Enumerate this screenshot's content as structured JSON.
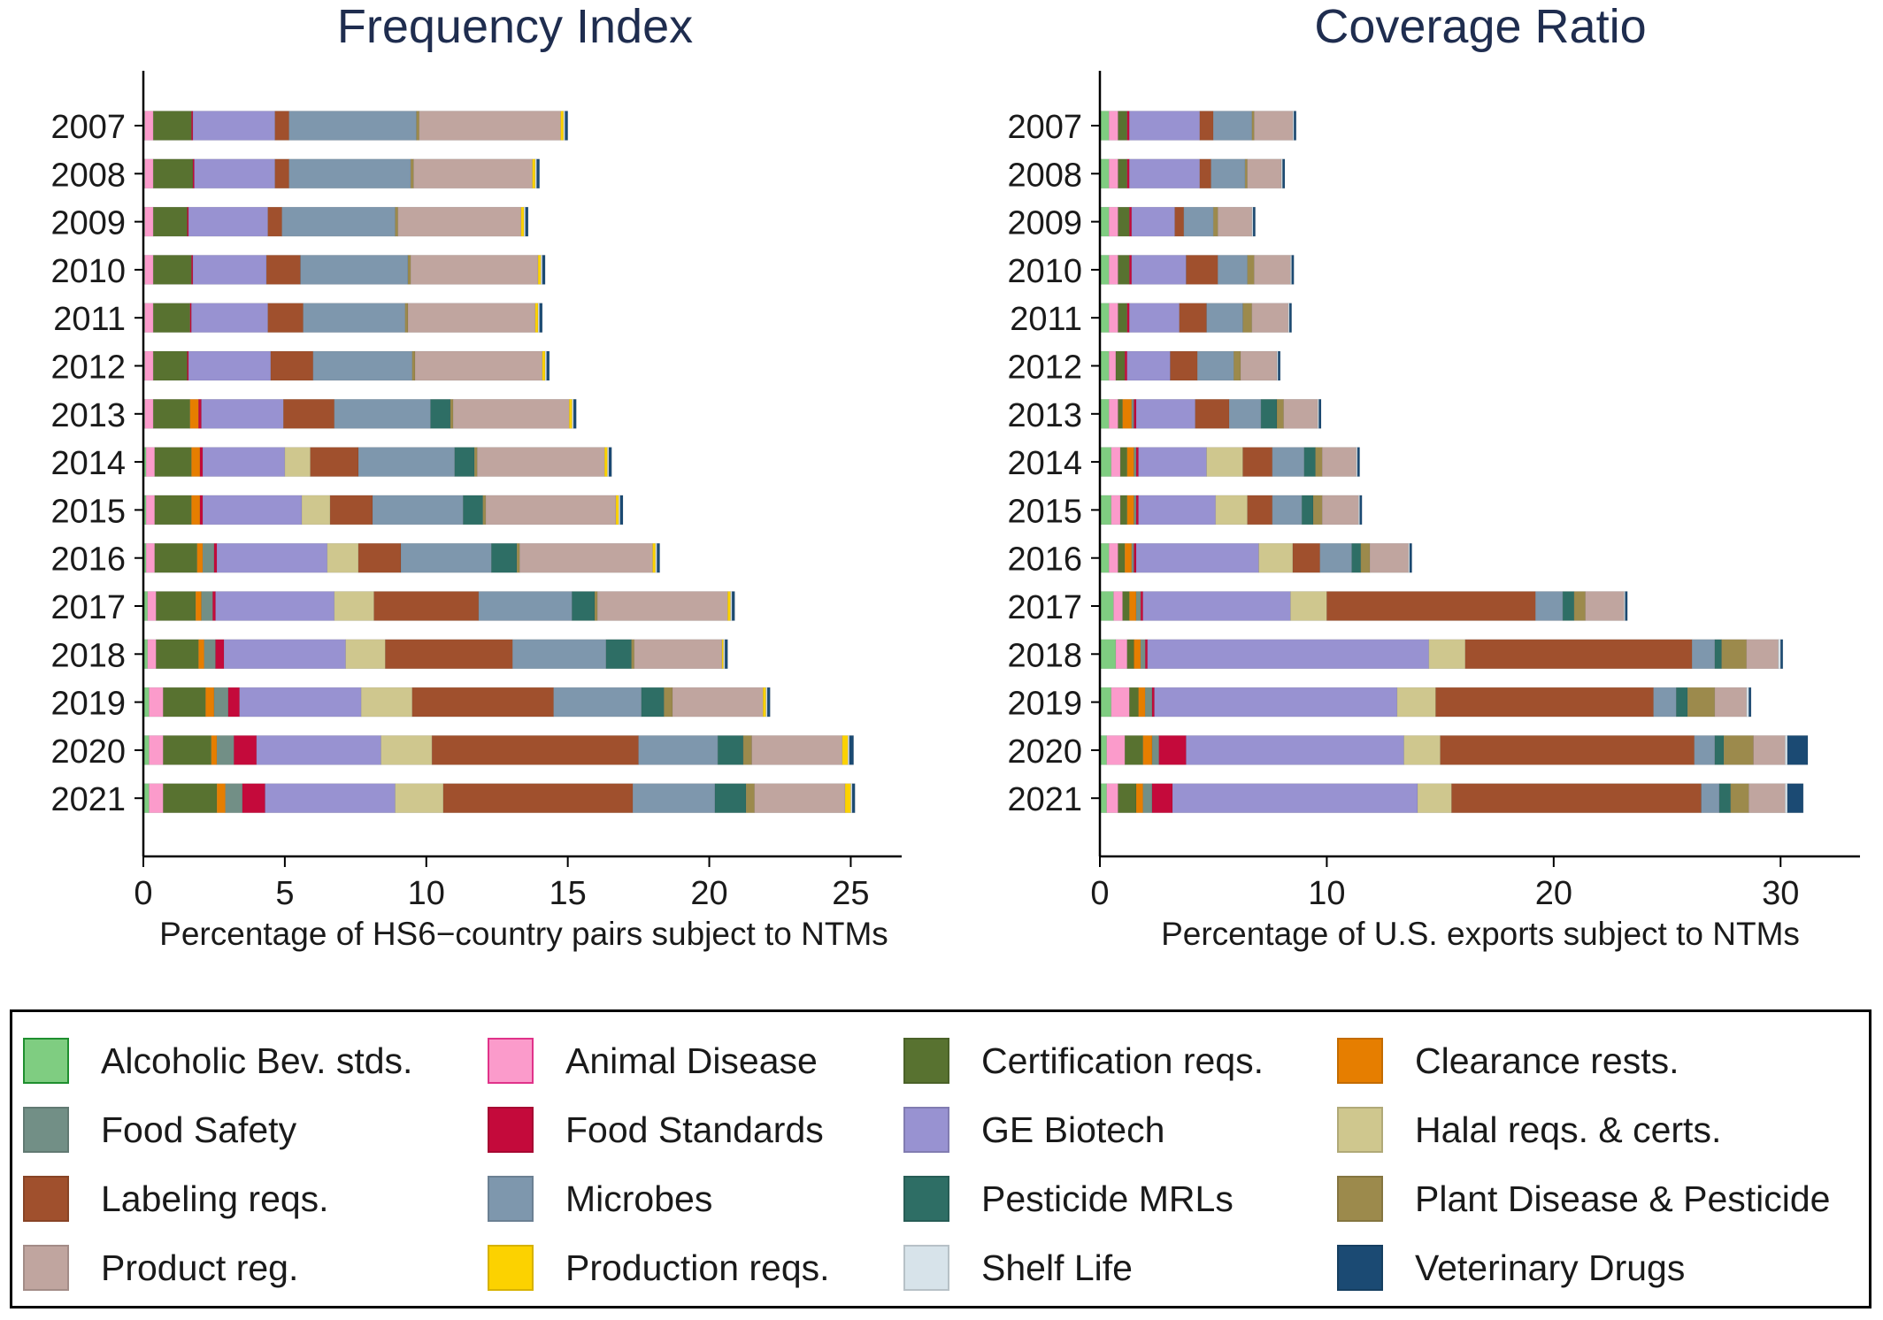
{
  "legend": [
    {
      "name": "Alcoholic Bev. stds.",
      "color": "#7fcd81",
      "border": "#1f8f2f"
    },
    {
      "name": "Animal Disease",
      "color": "#fb9bcb",
      "border": "#e0338a"
    },
    {
      "name": "Certification reqs.",
      "color": "#587230"
    },
    {
      "name": "Clearance rests.",
      "color": "#e67e00"
    },
    {
      "name": "Food Safety",
      "color": "#728f86"
    },
    {
      "name": "Food Standards",
      "color": "#c40a3b"
    },
    {
      "name": "GE Biotech",
      "color": "#9892d1"
    },
    {
      "name": "Halal reqs. & certs.",
      "color": "#cfc78e"
    },
    {
      "name": "Labeling reqs.",
      "color": "#a0502d"
    },
    {
      "name": "Microbes",
      "color": "#7e97ad"
    },
    {
      "name": "Pesticide MRLs",
      "color": "#2e6e65"
    },
    {
      "name": "Plant Disease & Pesticide",
      "color": "#9c8a4c"
    },
    {
      "name": "Product reg.",
      "color": "#c0a59f"
    },
    {
      "name": "Production reqs.",
      "color": "#fcd200"
    },
    {
      "name": "Shelf Life",
      "color": "#d7e3ea"
    },
    {
      "name": "Veterinary Drugs",
      "color": "#1b4a73"
    }
  ],
  "chart_data": [
    {
      "type": "bar",
      "orientation": "horizontal",
      "stacked": true,
      "title": "Frequency Index",
      "xlabel": "Percentage of HS6−country pairs subject to NTMs",
      "xlim": [
        0,
        26.8
      ],
      "xticks": [
        0,
        5,
        10,
        15,
        20,
        25
      ],
      "categories": [
        "2007",
        "2008",
        "2009",
        "2010",
        "2011",
        "2012",
        "2013",
        "2014",
        "2015",
        "2016",
        "2017",
        "2018",
        "2019",
        "2020",
        "2021"
      ],
      "series": [
        {
          "name": "Alcoholic Bev. stds.",
          "values": [
            0.05,
            0.05,
            0.05,
            0.05,
            0.05,
            0.05,
            0.05,
            0.1,
            0.1,
            0.1,
            0.15,
            0.15,
            0.2,
            0.2,
            0.2
          ]
        },
        {
          "name": "Animal Disease",
          "values": [
            0.3,
            0.3,
            0.3,
            0.3,
            0.3,
            0.3,
            0.3,
            0.3,
            0.3,
            0.3,
            0.3,
            0.3,
            0.5,
            0.5,
            0.5
          ]
        },
        {
          "name": "Certification reqs.",
          "values": [
            1.35,
            1.4,
            1.2,
            1.35,
            1.3,
            1.2,
            1.3,
            1.3,
            1.3,
            1.5,
            1.4,
            1.5,
            1.5,
            1.7,
            1.9
          ]
        },
        {
          "name": "Clearance rests.",
          "values": [
            0,
            0,
            0,
            0,
            0,
            0,
            0.3,
            0.3,
            0.3,
            0.2,
            0.2,
            0.2,
            0.3,
            0.2,
            0.3
          ]
        },
        {
          "name": "Food Safety",
          "values": [
            0,
            0,
            0,
            0,
            0,
            0,
            0,
            0,
            0,
            0.4,
            0.4,
            0.4,
            0.5,
            0.6,
            0.6
          ]
        },
        {
          "name": "Food Standards",
          "values": [
            0.05,
            0.05,
            0.05,
            0.05,
            0.05,
            0.05,
            0.1,
            0.1,
            0.1,
            0.1,
            0.1,
            0.3,
            0.4,
            0.8,
            0.8
          ]
        },
        {
          "name": "GE Biotech",
          "values": [
            2.9,
            2.85,
            2.8,
            2.6,
            2.7,
            2.9,
            2.9,
            2.9,
            3.5,
            3.9,
            4.2,
            4.3,
            4.3,
            4.4,
            4.6
          ]
        },
        {
          "name": "Halal reqs. & certs.",
          "values": [
            0,
            0,
            0,
            0,
            0,
            0,
            0,
            0.9,
            1.0,
            1.1,
            1.4,
            1.4,
            1.8,
            1.8,
            1.7
          ]
        },
        {
          "name": "Labeling reqs.",
          "values": [
            0.5,
            0.5,
            0.5,
            1.2,
            1.25,
            1.5,
            1.8,
            1.7,
            1.5,
            1.5,
            3.7,
            4.5,
            5.0,
            7.3,
            6.7
          ]
        },
        {
          "name": "Microbes",
          "values": [
            4.5,
            4.3,
            4.0,
            3.8,
            3.6,
            3.5,
            3.4,
            3.4,
            3.2,
            3.2,
            3.3,
            3.3,
            3.1,
            2.8,
            2.9
          ]
        },
        {
          "name": "Pesticide MRLs",
          "values": [
            0,
            0,
            0,
            0,
            0,
            0,
            0.7,
            0.7,
            0.7,
            0.9,
            0.8,
            0.9,
            0.8,
            0.9,
            1.1
          ]
        },
        {
          "name": "Plant Disease & Pesticide",
          "values": [
            0.1,
            0.1,
            0.1,
            0.1,
            0.1,
            0.1,
            0.1,
            0.1,
            0.1,
            0.1,
            0.1,
            0.1,
            0.3,
            0.3,
            0.3
          ]
        },
        {
          "name": "Product reg.",
          "values": [
            5.0,
            4.2,
            4.35,
            4.5,
            4.5,
            4.5,
            4.1,
            4.5,
            4.6,
            4.7,
            4.6,
            3.1,
            3.2,
            3.2,
            3.2
          ]
        },
        {
          "name": "Production reqs.",
          "values": [
            0.1,
            0.1,
            0.1,
            0.1,
            0.1,
            0.1,
            0.1,
            0.1,
            0.1,
            0.1,
            0.1,
            0.05,
            0.1,
            0.2,
            0.2
          ]
        },
        {
          "name": "Shelf Life",
          "values": [
            0.05,
            0.05,
            0.05,
            0.05,
            0.05,
            0.05,
            0.05,
            0.05,
            0.05,
            0.05,
            0.05,
            0.05,
            0.05,
            0.05,
            0.05
          ]
        },
        {
          "name": "Veterinary Drugs",
          "values": [
            0.1,
            0.1,
            0.1,
            0.1,
            0.1,
            0.1,
            0.1,
            0.1,
            0.1,
            0.1,
            0.1,
            0.1,
            0.1,
            0.15,
            0.1
          ]
        }
      ]
    },
    {
      "type": "bar",
      "orientation": "horizontal",
      "stacked": true,
      "title": "Coverage Ratio",
      "xlabel": "Percentage of U.S. exports subject to NTMs",
      "xlim": [
        0,
        33.5
      ],
      "xticks": [
        0,
        10,
        20,
        30
      ],
      "categories": [
        "2007",
        "2008",
        "2009",
        "2010",
        "2011",
        "2012",
        "2013",
        "2014",
        "2015",
        "2016",
        "2017",
        "2018",
        "2019",
        "2020",
        "2021"
      ],
      "series": [
        {
          "name": "Alcoholic Bev. stds.",
          "values": [
            0.4,
            0.4,
            0.4,
            0.4,
            0.4,
            0.4,
            0.4,
            0.5,
            0.5,
            0.4,
            0.6,
            0.7,
            0.5,
            0.3,
            0.3
          ]
        },
        {
          "name": "Animal Disease",
          "values": [
            0.4,
            0.4,
            0.4,
            0.4,
            0.4,
            0.3,
            0.4,
            0.4,
            0.4,
            0.4,
            0.4,
            0.5,
            0.8,
            0.8,
            0.5
          ]
        },
        {
          "name": "Certification reqs.",
          "values": [
            0.4,
            0.4,
            0.5,
            0.5,
            0.4,
            0.4,
            0.2,
            0.3,
            0.3,
            0.3,
            0.3,
            0.3,
            0.4,
            0.8,
            0.8
          ]
        },
        {
          "name": "Clearance rests.",
          "values": [
            0,
            0,
            0,
            0,
            0,
            0,
            0.4,
            0.3,
            0.3,
            0.3,
            0.3,
            0.3,
            0.3,
            0.4,
            0.3
          ]
        },
        {
          "name": "Food Safety",
          "values": [
            0,
            0,
            0,
            0,
            0,
            0,
            0.1,
            0.1,
            0.1,
            0.1,
            0.2,
            0.2,
            0.3,
            0.3,
            0.4
          ]
        },
        {
          "name": "Food Standards",
          "values": [
            0.1,
            0.1,
            0.1,
            0.1,
            0.1,
            0.1,
            0.1,
            0.1,
            0.1,
            0.1,
            0.1,
            0.1,
            0.1,
            1.2,
            0.9
          ]
        },
        {
          "name": "GE Biotech",
          "values": [
            3.1,
            3.1,
            1.9,
            2.4,
            2.2,
            1.9,
            2.6,
            3.0,
            3.4,
            5.4,
            6.5,
            12.4,
            10.7,
            9.6,
            10.8
          ]
        },
        {
          "name": "Halal reqs. & certs.",
          "values": [
            0,
            0,
            0,
            0,
            0,
            0,
            0,
            1.6,
            1.4,
            1.5,
            1.6,
            1.6,
            1.7,
            1.6,
            1.5
          ]
        },
        {
          "name": "Labeling reqs.",
          "values": [
            0.6,
            0.5,
            0.4,
            1.4,
            1.2,
            1.2,
            1.5,
            1.3,
            1.1,
            1.2,
            9.2,
            10.0,
            9.6,
            11.2,
            11.0
          ]
        },
        {
          "name": "Microbes",
          "values": [
            1.7,
            1.5,
            1.3,
            1.3,
            1.6,
            1.6,
            1.4,
            1.4,
            1.3,
            1.4,
            1.2,
            1.0,
            1.0,
            0.9,
            0.8
          ]
        },
        {
          "name": "Pesticide MRLs",
          "values": [
            0,
            0,
            0,
            0,
            0,
            0,
            0.7,
            0.5,
            0.5,
            0.4,
            0.5,
            0.3,
            0.5,
            0.4,
            0.5
          ]
        },
        {
          "name": "Plant Disease & Pesticide",
          "values": [
            0.1,
            0.1,
            0.2,
            0.3,
            0.4,
            0.3,
            0.3,
            0.3,
            0.4,
            0.4,
            0.5,
            1.1,
            1.2,
            1.3,
            0.8
          ]
        },
        {
          "name": "Product reg.",
          "values": [
            1.7,
            1.5,
            1.5,
            1.6,
            1.6,
            1.6,
            1.5,
            1.5,
            1.6,
            1.7,
            1.7,
            1.4,
            1.4,
            1.4,
            1.6
          ]
        },
        {
          "name": "Production reqs.",
          "values": [
            0,
            0,
            0,
            0,
            0,
            0,
            0,
            0,
            0,
            0,
            0,
            0,
            0,
            0,
            0
          ]
        },
        {
          "name": "Shelf Life",
          "values": [
            0.05,
            0.05,
            0.05,
            0.05,
            0.05,
            0.05,
            0.05,
            0.05,
            0.05,
            0.05,
            0.05,
            0.1,
            0.1,
            0.1,
            0.1
          ]
        },
        {
          "name": "Veterinary Drugs",
          "values": [
            0.1,
            0.1,
            0.1,
            0.1,
            0.1,
            0.1,
            0.1,
            0.1,
            0.1,
            0.1,
            0.1,
            0.1,
            0.1,
            0.9,
            0.7
          ]
        }
      ]
    }
  ]
}
